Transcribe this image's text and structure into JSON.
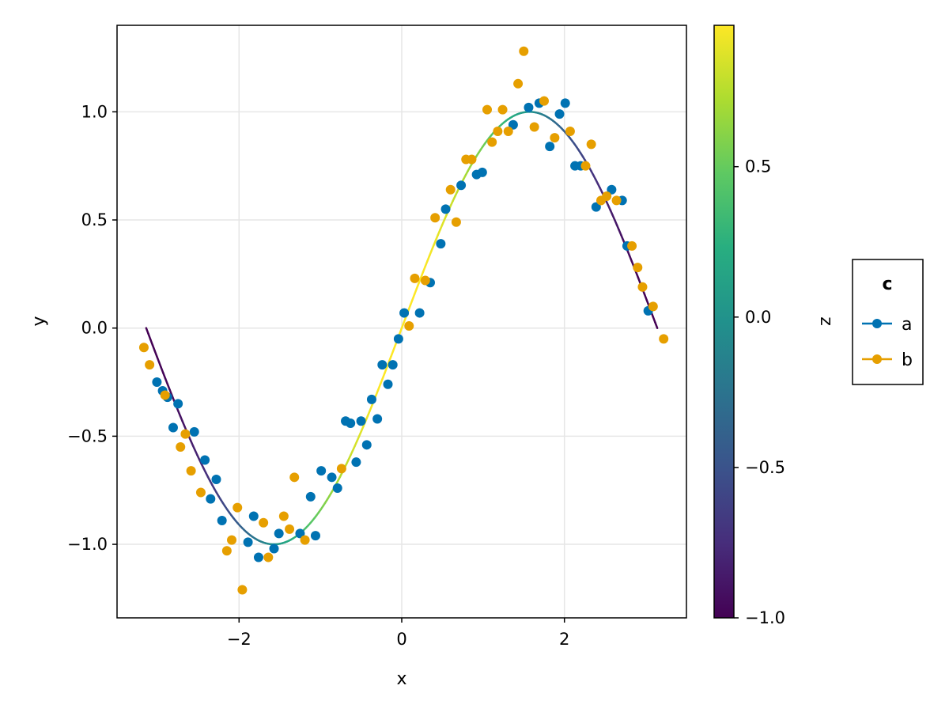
{
  "chart_data": {
    "type": "scatter",
    "title": "",
    "xlabel": "x",
    "ylabel": "y",
    "colorbar_label": "z",
    "xlim": [
      -3.5,
      3.5
    ],
    "ylim": [
      -1.34,
      1.4
    ],
    "grid": true,
    "x_ticks": [
      -2,
      0,
      2
    ],
    "x_tick_labels": [
      "−2",
      "0",
      "2"
    ],
    "y_ticks": [
      -1.0,
      -0.5,
      0.0,
      0.5,
      1.0
    ],
    "y_tick_labels": [
      "−1.0",
      "−0.5",
      "0.0",
      "0.5",
      "1.0"
    ],
    "colorbar": {
      "colormap": "viridis",
      "range": [
        -1.0,
        0.97
      ],
      "ticks": [
        -1.0,
        -0.5,
        0.0,
        0.5
      ],
      "tick_labels": [
        "−1.0",
        "−0.5",
        "0.0",
        "0.5"
      ]
    },
    "line": {
      "name": "",
      "function": "sin(x) colored by cos(x)",
      "x_range": [
        -3.14159,
        3.14159
      ]
    },
    "legend": {
      "title": "c",
      "placement": "right",
      "entries": [
        "a",
        "b"
      ]
    },
    "series": [
      {
        "name": "a",
        "color": "#0072b2",
        "points": [
          [
            -3.01,
            -0.25
          ],
          [
            -2.94,
            -0.29
          ],
          [
            -2.88,
            -0.32
          ],
          [
            -2.81,
            -0.46
          ],
          [
            -2.75,
            -0.35
          ],
          [
            -2.55,
            -0.48
          ],
          [
            -2.42,
            -0.61
          ],
          [
            -2.35,
            -0.79
          ],
          [
            -2.28,
            -0.7
          ],
          [
            -2.21,
            -0.89
          ],
          [
            -1.89,
            -0.99
          ],
          [
            -1.82,
            -0.87
          ],
          [
            -1.76,
            -1.06
          ],
          [
            -1.57,
            -1.02
          ],
          [
            -1.51,
            -0.95
          ],
          [
            -1.25,
            -0.95
          ],
          [
            -1.12,
            -0.78
          ],
          [
            -1.06,
            -0.96
          ],
          [
            -0.99,
            -0.66
          ],
          [
            -0.86,
            -0.69
          ],
          [
            -0.79,
            -0.74
          ],
          [
            -0.69,
            -0.43
          ],
          [
            -0.63,
            -0.44
          ],
          [
            -0.56,
            -0.62
          ],
          [
            -0.5,
            -0.43
          ],
          [
            -0.43,
            -0.54
          ],
          [
            -0.37,
            -0.33
          ],
          [
            -0.3,
            -0.42
          ],
          [
            -0.24,
            -0.17
          ],
          [
            -0.17,
            -0.26
          ],
          [
            -0.11,
            -0.17
          ],
          [
            -0.04,
            -0.05
          ],
          [
            0.03,
            0.07
          ],
          [
            0.22,
            0.07
          ],
          [
            0.35,
            0.21
          ],
          [
            0.48,
            0.39
          ],
          [
            0.54,
            0.55
          ],
          [
            0.73,
            0.66
          ],
          [
            0.92,
            0.71
          ],
          [
            0.99,
            0.72
          ],
          [
            1.37,
            0.94
          ],
          [
            1.56,
            1.02
          ],
          [
            1.69,
            1.04
          ],
          [
            1.82,
            0.84
          ],
          [
            1.94,
            0.99
          ],
          [
            2.01,
            1.04
          ],
          [
            2.13,
            0.75
          ],
          [
            2.2,
            0.75
          ],
          [
            2.39,
            0.56
          ],
          [
            2.58,
            0.64
          ],
          [
            2.71,
            0.59
          ],
          [
            2.77,
            0.38
          ],
          [
            3.03,
            0.08
          ]
        ]
      },
      {
        "name": "b",
        "color": "#e69f00",
        "points": [
          [
            -3.17,
            -0.09
          ],
          [
            -3.1,
            -0.17
          ],
          [
            -2.91,
            -0.31
          ],
          [
            -2.72,
            -0.55
          ],
          [
            -2.66,
            -0.49
          ],
          [
            -2.59,
            -0.66
          ],
          [
            -2.47,
            -0.76
          ],
          [
            -2.15,
            -1.03
          ],
          [
            -2.09,
            -0.98
          ],
          [
            -2.02,
            -0.83
          ],
          [
            -1.96,
            -1.21
          ],
          [
            -1.7,
            -0.9
          ],
          [
            -1.64,
            -1.06
          ],
          [
            -1.45,
            -0.87
          ],
          [
            -1.38,
            -0.93
          ],
          [
            -1.32,
            -0.69
          ],
          [
            -1.19,
            -0.98
          ],
          [
            -0.74,
            -0.65
          ],
          [
            0.09,
            0.01
          ],
          [
            0.16,
            0.23
          ],
          [
            0.29,
            0.22
          ],
          [
            0.41,
            0.51
          ],
          [
            0.6,
            0.64
          ],
          [
            0.67,
            0.49
          ],
          [
            0.79,
            0.78
          ],
          [
            0.86,
            0.78
          ],
          [
            1.05,
            1.01
          ],
          [
            1.11,
            0.86
          ],
          [
            1.18,
            0.91
          ],
          [
            1.24,
            1.01
          ],
          [
            1.31,
            0.91
          ],
          [
            1.43,
            1.13
          ],
          [
            1.5,
            1.28
          ],
          [
            1.63,
            0.93
          ],
          [
            1.75,
            1.05
          ],
          [
            1.88,
            0.88
          ],
          [
            2.07,
            0.91
          ],
          [
            2.26,
            0.75
          ],
          [
            2.33,
            0.85
          ],
          [
            2.45,
            0.59
          ],
          [
            2.52,
            0.61
          ],
          [
            2.64,
            0.59
          ],
          [
            2.83,
            0.38
          ],
          [
            2.9,
            0.28
          ],
          [
            2.96,
            0.19
          ],
          [
            3.09,
            0.1
          ],
          [
            3.22,
            -0.05
          ]
        ]
      }
    ]
  }
}
